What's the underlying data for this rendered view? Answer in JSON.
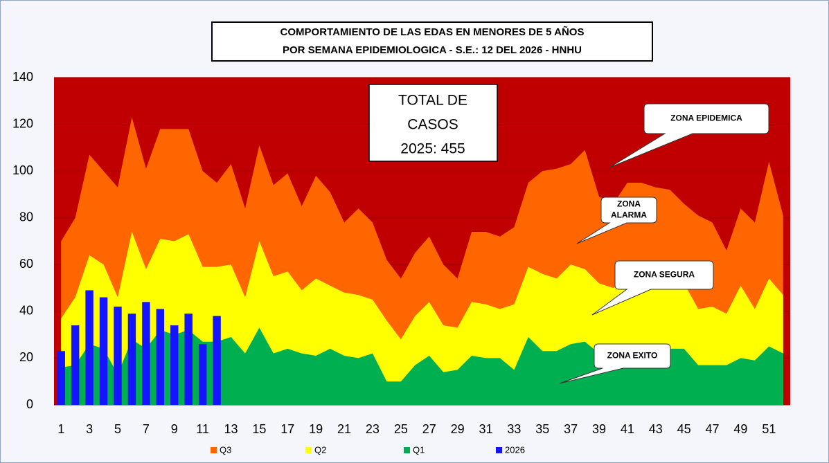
{
  "chart_data": {
    "type": "area",
    "title": [
      "COMPORTAMIENTO DE LAS EDAS EN MENORES DE 5 AÑOS",
      "POR SEMANA EPIDEMIOLOGICA - S.E.: 12 DEL 2026 - HNHU"
    ],
    "plot_background": "#c00000",
    "categories": [
      1,
      null,
      3,
      null,
      5,
      null,
      7,
      null,
      9,
      null,
      11,
      null,
      13,
      null,
      15,
      null,
      17,
      null,
      19,
      null,
      21,
      null,
      23,
      null,
      25,
      null,
      27,
      null,
      29,
      null,
      31,
      null,
      33,
      null,
      35,
      null,
      37,
      null,
      39,
      null,
      41,
      null,
      43,
      null,
      45,
      null,
      47,
      null,
      49,
      null,
      51,
      null
    ],
    "series": [
      {
        "name": "Q3",
        "type": "area",
        "color": "#ff6600",
        "values": [
          70,
          80,
          107,
          100,
          93,
          123,
          101,
          118,
          118,
          118,
          100,
          95,
          103,
          84,
          111,
          94,
          99,
          85,
          98,
          91,
          78,
          84,
          78,
          62,
          54,
          65,
          72,
          60,
          54,
          74,
          74,
          72,
          76,
          95,
          100,
          101,
          103,
          109,
          89,
          86,
          95,
          95,
          93,
          92,
          86,
          81,
          78,
          66,
          84,
          78,
          104,
          81
        ]
      },
      {
        "name": "Q2",
        "type": "area",
        "color": "#ffff00",
        "values": [
          37,
          46,
          64,
          60,
          46,
          74,
          58,
          71,
          70,
          73,
          59,
          59,
          60,
          46,
          70,
          55,
          57,
          49,
          54,
          51,
          48,
          47,
          45,
          36,
          28,
          38,
          44,
          34,
          33,
          44,
          43,
          41,
          43,
          59,
          56,
          54,
          60,
          58,
          52,
          50,
          53,
          55,
          55,
          53,
          52,
          41,
          42,
          39,
          51,
          41,
          54,
          47
        ]
      },
      {
        "name": "Q1",
        "type": "area",
        "color": "#00b050",
        "values": [
          16,
          17,
          26,
          24,
          13,
          28,
          24,
          32,
          30,
          32,
          27,
          27,
          29,
          22,
          33,
          22,
          24,
          22,
          21,
          24,
          21,
          20,
          22,
          10,
          10,
          17,
          21,
          14,
          15,
          21,
          20,
          20,
          15,
          29,
          23,
          23,
          26,
          27,
          22,
          21,
          21,
          22,
          22,
          24,
          24,
          17,
          17,
          17,
          20,
          19,
          25,
          22
        ]
      },
      {
        "name": "2026",
        "type": "bar",
        "color": "#1414ff",
        "values": [
          23,
          34,
          49,
          46,
          42,
          39,
          44,
          41,
          34,
          39,
          26,
          38,
          null,
          null,
          null,
          null,
          null,
          null,
          null,
          null,
          null,
          null,
          null,
          null,
          null,
          null,
          null,
          null,
          null,
          null,
          null,
          null,
          null,
          null,
          null,
          null,
          null,
          null,
          null,
          null,
          null,
          null,
          null,
          null,
          null,
          null,
          null,
          null,
          null,
          null,
          null,
          null
        ]
      }
    ],
    "ylim": [
      0,
      140
    ],
    "yticks": [
      0,
      20,
      40,
      60,
      80,
      100,
      120,
      140
    ],
    "grid": true,
    "legend": "bottom",
    "total_box": [
      "TOTAL DE",
      "CASOS",
      "2025: 455"
    ],
    "annotations": [
      [
        "ZONA EPIDEMICA"
      ],
      [
        "ZONA",
        "ALARMA"
      ],
      [
        "ZONA SEGURA"
      ],
      [
        "ZONA EXITO"
      ]
    ]
  }
}
